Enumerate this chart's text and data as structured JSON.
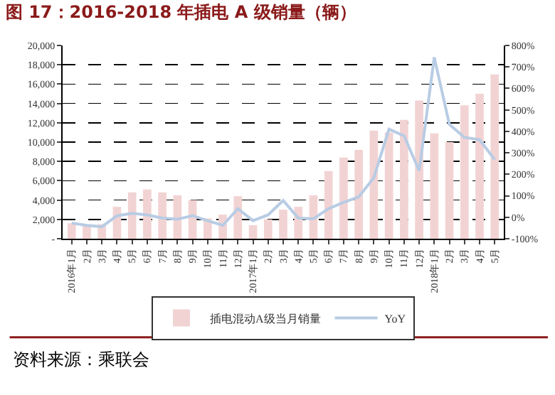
{
  "chart_data": {
    "type": "bar",
    "title": "图 17：2016-2018 年插电 A 级销量（辆）",
    "categories": [
      "2016年1月",
      "2月",
      "3月",
      "4月",
      "5月",
      "6月",
      "7月",
      "8月",
      "9月",
      "10月",
      "11月",
      "12月",
      "2017年1月",
      "2月",
      "3月",
      "4月",
      "5月",
      "6月",
      "7月",
      "8月",
      "9月",
      "10月",
      "11月",
      "12月",
      "2018年1月",
      "2月",
      "3月",
      "4月",
      "5月"
    ],
    "series": [
      {
        "name": "插电混动A级当月销量",
        "color": "#f2d3d3",
        "values": [
          1600,
          1400,
          1500,
          3300,
          4800,
          5100,
          4800,
          4500,
          4000,
          2100,
          2500,
          4400,
          1400,
          2000,
          3000,
          3300,
          4500,
          7000,
          8400,
          9200,
          11200,
          11000,
          12300,
          14300,
          10900,
          10000,
          13800,
          15000,
          17000
        ]
      },
      {
        "name": "YoY",
        "type": "line",
        "axis": "y2",
        "color": "#b8cce4",
        "line_style": "solid",
        "marker": "none",
        "values": [
          -27,
          -38,
          -44,
          7,
          18,
          11,
          -4,
          -9,
          7,
          -16,
          -38,
          40,
          -16,
          11,
          78,
          -4,
          -7,
          40,
          69,
          95,
          184,
          410,
          379,
          217,
          745,
          432,
          372,
          361,
          268
        ]
      }
    ],
    "ylim": [
      0,
      20000
    ],
    "yticks": [
      {
        "value": 0,
        "label": "-"
      },
      {
        "value": 2000,
        "label": "2,000"
      },
      {
        "value": 4000,
        "label": "4,000"
      },
      {
        "value": 6000,
        "label": "6,000"
      },
      {
        "value": 8000,
        "label": "8,000"
      },
      {
        "value": 10000,
        "label": "10,000"
      },
      {
        "value": 12000,
        "label": "12,000"
      },
      {
        "value": 14000,
        "label": "14,000"
      },
      {
        "value": 16000,
        "label": "16,000"
      },
      {
        "value": 18000,
        "label": "18,000"
      },
      {
        "value": 20000,
        "label": "20,000"
      }
    ],
    "y2lim": [
      -100,
      800
    ],
    "y2ticks": [
      {
        "value": -100,
        "label": "-100%"
      },
      {
        "value": 0,
        "label": "0%"
      },
      {
        "value": 100,
        "label": "100%"
      },
      {
        "value": 200,
        "label": "200%"
      },
      {
        "value": 300,
        "label": "300%"
      },
      {
        "value": 400,
        "label": "400%"
      },
      {
        "value": 500,
        "label": "500%"
      },
      {
        "value": 600,
        "label": "600%"
      },
      {
        "value": 700,
        "label": "700%"
      },
      {
        "value": 800,
        "label": "800%"
      }
    ],
    "grid": "y",
    "legend": "bottom",
    "annotations": [
      "资料来源：乘联会"
    ]
  }
}
